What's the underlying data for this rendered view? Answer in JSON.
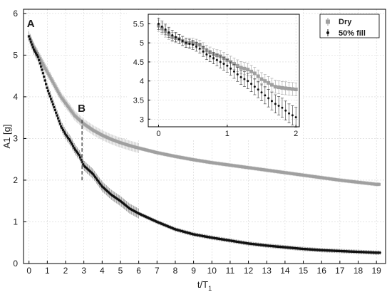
{
  "chart_data": {
    "type": "scatter",
    "title": "",
    "xlabel": "t/T",
    "xlabel_sub": "1",
    "ylabel": "A1 [g]",
    "xlim": [
      -0.3,
      19.5
    ],
    "ylim": [
      0,
      6.1
    ],
    "xticks": [
      "0",
      "1",
      "2",
      "3",
      "4",
      "5",
      "6",
      "7",
      "8",
      "9",
      "10",
      "11",
      "12",
      "13",
      "14",
      "15",
      "16",
      "17",
      "18",
      "19"
    ],
    "yticks": [
      "0",
      "1",
      "2",
      "3",
      "4",
      "5",
      "6"
    ],
    "grid": true,
    "legend": "top-right of inset",
    "series": [
      {
        "name": "Dry",
        "color": "#a0a0a0",
        "marker": "square",
        "x": [
          0,
          0.25,
          0.5,
          0.75,
          1,
          1.25,
          1.5,
          1.75,
          2,
          2.25,
          2.5,
          2.75,
          3,
          3.5,
          4,
          4.5,
          5,
          5.5,
          6,
          7,
          8,
          9,
          10,
          11,
          12,
          13,
          14,
          15,
          16,
          17,
          18,
          19
        ],
        "y": [
          5.45,
          5.2,
          5.0,
          4.8,
          4.6,
          4.4,
          4.2,
          4.0,
          3.85,
          3.7,
          3.55,
          3.45,
          3.35,
          3.2,
          3.08,
          2.98,
          2.9,
          2.83,
          2.77,
          2.66,
          2.57,
          2.49,
          2.42,
          2.36,
          2.3,
          2.24,
          2.18,
          2.12,
          2.06,
          2.0,
          1.95,
          1.9
        ]
      },
      {
        "name": "50% fill",
        "color": "#111111",
        "marker": "circle",
        "x": [
          0,
          0.25,
          0.5,
          0.75,
          1,
          1.25,
          1.5,
          1.75,
          2,
          2.25,
          2.5,
          2.75,
          3,
          3.5,
          4,
          4.5,
          5,
          5.5,
          6,
          7,
          8,
          9,
          10,
          11,
          12,
          13,
          14,
          15,
          16,
          17,
          18,
          19
        ],
        "y": [
          5.45,
          5.15,
          4.95,
          4.6,
          4.2,
          3.9,
          3.6,
          3.3,
          3.1,
          2.95,
          2.75,
          2.6,
          2.35,
          2.15,
          1.85,
          1.65,
          1.5,
          1.32,
          1.2,
          1.0,
          0.82,
          0.7,
          0.62,
          0.55,
          0.48,
          0.43,
          0.39,
          0.35,
          0.32,
          0.3,
          0.28,
          0.26
        ]
      }
    ],
    "annotations": [
      {
        "text": "A",
        "x": 0,
        "y": 5.6
      },
      {
        "text": "B",
        "x": 2.9,
        "y": 3.35
      }
    ],
    "marker_line": {
      "x": 2.9,
      "y_range": [
        1.95,
        3.45
      ]
    },
    "inset": {
      "xlim": [
        -0.15,
        2.05
      ],
      "ylim": [
        2.8,
        5.75
      ],
      "xticks": [
        "0",
        "1",
        "2"
      ],
      "yticks": [
        "3",
        "3.5",
        "4",
        "4.5",
        "5",
        "5.5"
      ],
      "grid": true,
      "series": [
        {
          "name": "Dry",
          "x": [
            0,
            0.1,
            0.2,
            0.3,
            0.4,
            0.5,
            0.6,
            0.7,
            0.8,
            0.9,
            1.0,
            1.1,
            1.2,
            1.3,
            1.4,
            1.5,
            1.6,
            1.7,
            1.8,
            1.9,
            2.0
          ],
          "y": [
            5.45,
            5.3,
            5.15,
            5.1,
            5.0,
            5.0,
            4.95,
            4.8,
            4.7,
            4.65,
            4.55,
            4.45,
            4.35,
            4.3,
            4.2,
            4.05,
            3.95,
            3.85,
            3.82,
            3.8,
            3.78
          ],
          "err": [
            0.15,
            0.15,
            0.12,
            0.12,
            0.12,
            0.12,
            0.12,
            0.14,
            0.14,
            0.15,
            0.15,
            0.15,
            0.16,
            0.16,
            0.16,
            0.17,
            0.17,
            0.17,
            0.17,
            0.17,
            0.17
          ]
        },
        {
          "name": "50% fill",
          "x": [
            0,
            0.1,
            0.2,
            0.3,
            0.4,
            0.5,
            0.6,
            0.7,
            0.8,
            0.9,
            1.0,
            1.1,
            1.2,
            1.3,
            1.4,
            1.5,
            1.6,
            1.7,
            1.8,
            1.9,
            2.0
          ],
          "y": [
            5.5,
            5.35,
            5.2,
            5.1,
            5.0,
            4.95,
            4.85,
            4.7,
            4.6,
            4.5,
            4.4,
            4.25,
            4.1,
            4.0,
            3.85,
            3.7,
            3.55,
            3.4,
            3.3,
            3.15,
            3.05
          ],
          "err": [
            0.15,
            0.14,
            0.13,
            0.12,
            0.12,
            0.12,
            0.12,
            0.14,
            0.15,
            0.16,
            0.17,
            0.18,
            0.19,
            0.2,
            0.21,
            0.22,
            0.23,
            0.24,
            0.25,
            0.25,
            0.26
          ]
        }
      ]
    }
  }
}
